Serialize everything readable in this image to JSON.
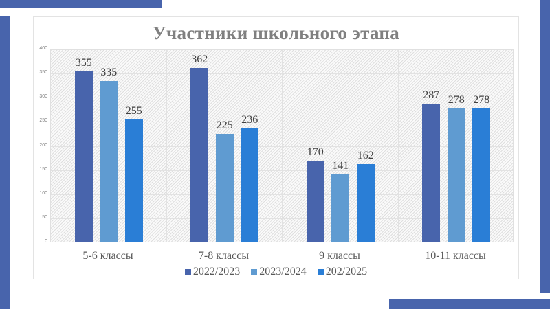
{
  "decorations": {
    "color": "#4864ac"
  },
  "chart_data": {
    "type": "bar",
    "title": "Участники школьного этапа",
    "categories": [
      "5-6 классы",
      "7-8 классы",
      "9 классы",
      "10-11 классы"
    ],
    "series": [
      {
        "name": "2022/2023",
        "color": "#4864ac",
        "values": [
          355,
          362,
          170,
          287
        ]
      },
      {
        "name": "2023/2024",
        "color": "#5f9bd1",
        "values": [
          335,
          225,
          141,
          278
        ]
      },
      {
        "name": "202/2025",
        "color": "#2a7ed6",
        "values": [
          255,
          236,
          162,
          278
        ]
      }
    ],
    "xlabel": "",
    "ylabel": "",
    "ylim": [
      0,
      400
    ],
    "yticks": [
      "0",
      "50",
      "100",
      "150",
      "200",
      "250",
      "300",
      "350",
      "400"
    ],
    "grid": true,
    "legend_position": "bottom",
    "data_labels": true
  }
}
